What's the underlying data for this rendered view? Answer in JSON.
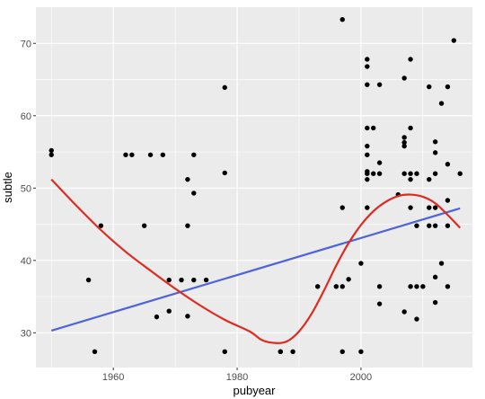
{
  "chart_data": {
    "type": "scatter",
    "xlabel": "pubyear",
    "ylabel": "subtle",
    "xlim": [
      1947.5,
      2018
    ],
    "ylim": [
      25.2,
      75
    ],
    "x_ticks": [
      1960,
      1980,
      2000
    ],
    "y_ticks": [
      30,
      40,
      50,
      60,
      70
    ],
    "grid": true,
    "background": "#ebebeb",
    "grid_major_color": "#ffffff",
    "point_color": "#000000",
    "linear_fit_color": "#4f64d8",
    "smooth_fit_color": "#de2b22",
    "points": [
      [
        1950,
        55.2
      ],
      [
        1950,
        54.6
      ],
      [
        1956,
        37.3
      ],
      [
        1957,
        27.4
      ],
      [
        1958,
        44.8
      ],
      [
        1962,
        54.6
      ],
      [
        1963,
        54.6
      ],
      [
        1965,
        44.8
      ],
      [
        1966,
        54.6
      ],
      [
        1967,
        32.2
      ],
      [
        1968,
        54.6
      ],
      [
        1969,
        37.3
      ],
      [
        1969,
        33.0
      ],
      [
        1971,
        37.3
      ],
      [
        1972,
        51.2
      ],
      [
        1972,
        44.8
      ],
      [
        1972,
        32.3
      ],
      [
        1973,
        54.6
      ],
      [
        1973,
        49.3
      ],
      [
        1973,
        37.3
      ],
      [
        1975,
        37.3
      ],
      [
        1978,
        63.9
      ],
      [
        1978,
        52.1
      ],
      [
        1978,
        27.4
      ],
      [
        1987,
        27.4
      ],
      [
        1987,
        27.4
      ],
      [
        1989,
        27.4
      ],
      [
        1993,
        36.4
      ],
      [
        1996,
        36.4
      ],
      [
        1997,
        73.3
      ],
      [
        1997,
        47.3
      ],
      [
        1997,
        36.4
      ],
      [
        1997,
        27.4
      ],
      [
        1998,
        37.4
      ],
      [
        2000,
        39.6
      ],
      [
        2000,
        27.4
      ],
      [
        2001,
        67.8
      ],
      [
        2001,
        66.8
      ],
      [
        2001,
        64.3
      ],
      [
        2001,
        58.3
      ],
      [
        2001,
        55.8
      ],
      [
        2001,
        54.6
      ],
      [
        2001,
        52.3
      ],
      [
        2001,
        52.0
      ],
      [
        2001,
        51.2
      ],
      [
        2001,
        47.3
      ],
      [
        2002,
        58.3
      ],
      [
        2002,
        52.0
      ],
      [
        2003,
        64.3
      ],
      [
        2003,
        53.5
      ],
      [
        2003,
        52.0
      ],
      [
        2003,
        36.4
      ],
      [
        2003,
        34.0
      ],
      [
        2006,
        49.1
      ],
      [
        2007,
        65.2
      ],
      [
        2007,
        57.0
      ],
      [
        2007,
        56.3
      ],
      [
        2007,
        55.8
      ],
      [
        2007,
        52.0
      ],
      [
        2007,
        32.9
      ],
      [
        2008,
        67.8
      ],
      [
        2008,
        58.3
      ],
      [
        2008,
        52.0
      ],
      [
        2008,
        51.2
      ],
      [
        2008,
        47.3
      ],
      [
        2008,
        36.4
      ],
      [
        2009,
        52.0
      ],
      [
        2009,
        44.8
      ],
      [
        2009,
        36.4
      ],
      [
        2009,
        31.9
      ],
      [
        2010,
        36.4
      ],
      [
        2011,
        64.0
      ],
      [
        2011,
        51.2
      ],
      [
        2011,
        47.3
      ],
      [
        2011,
        44.8
      ],
      [
        2012,
        56.4
      ],
      [
        2012,
        54.9
      ],
      [
        2012,
        52.0
      ],
      [
        2012,
        47.3
      ],
      [
        2012,
        44.8
      ],
      [
        2012,
        37.7
      ],
      [
        2012,
        34.2
      ],
      [
        2013,
        61.7
      ],
      [
        2013,
        39.6
      ],
      [
        2014,
        64.0
      ],
      [
        2014,
        53.3
      ],
      [
        2014,
        48.3
      ],
      [
        2014,
        44.8
      ],
      [
        2014,
        36.4
      ],
      [
        2015,
        70.4
      ],
      [
        2016,
        52.0
      ]
    ],
    "linear_fit": {
      "x": [
        1950,
        2016
      ],
      "y": [
        30.3,
        47.2
      ]
    },
    "smooth_fit": {
      "x": [
        1950,
        1954,
        1958,
        1962,
        1966,
        1970,
        1974,
        1978,
        1982,
        1984,
        1986,
        1988,
        1990,
        1992,
        1994,
        1996,
        1998,
        2000,
        2002,
        2004,
        2006,
        2008,
        2010,
        2012,
        2014,
        2016
      ],
      "y": [
        51.2,
        47.6,
        44.2,
        41.2,
        38.6,
        36.1,
        33.8,
        31.8,
        30.2,
        29.0,
        28.6,
        28.8,
        30.2,
        32.6,
        35.8,
        39.3,
        42.4,
        44.9,
        46.8,
        48.1,
        48.9,
        49.1,
        48.8,
        47.9,
        46.3,
        44.5
      ]
    }
  }
}
